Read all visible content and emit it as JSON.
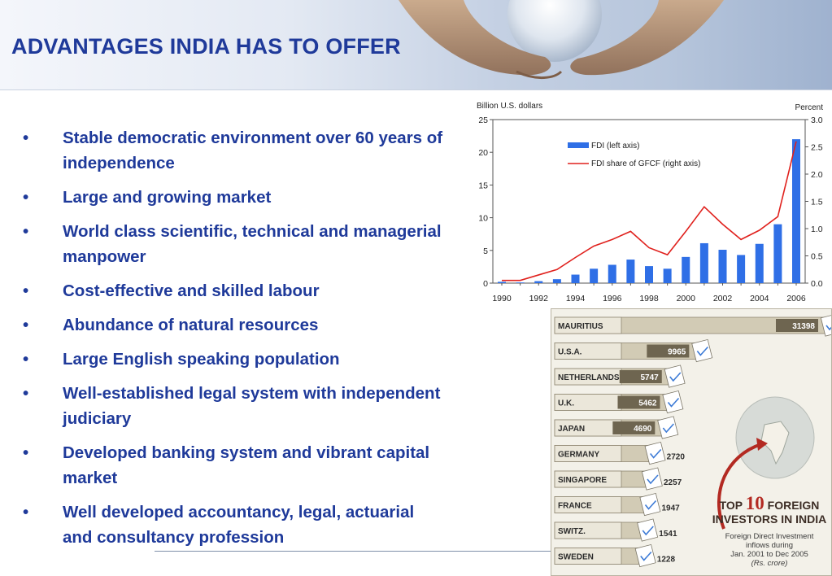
{
  "slide": {
    "title": "ADVANTAGES INDIA HAS TO OFFER",
    "bullet_marker": "•",
    "bullets": [
      "Stable democratic environment over 60 years of independence",
      "Large and growing market",
      "World class scientific, technical and managerial manpower",
      "Cost-effective and skilled labour",
      "Abundance of natural resources",
      "Large English speaking population",
      "Well-established legal system with independent judiciary",
      "Developed banking system and vibrant capital market",
      "Well developed accountancy, legal, actuarial and consultancy profession"
    ]
  },
  "chart_data": [
    {
      "type": "bar",
      "combo": "bar + line, dual axis",
      "left_axis_title": "Billion U.S. dollars",
      "right_axis_title": "Percent",
      "x": [
        1990,
        1991,
        1992,
        1993,
        1994,
        1995,
        1996,
        1997,
        1998,
        1999,
        2000,
        2001,
        2002,
        2003,
        2004,
        2005,
        2006
      ],
      "x_tick_labels": [
        "1990",
        "1992",
        "1994",
        "1996",
        "1998",
        "2000",
        "2002",
        "2004",
        "2006"
      ],
      "ylim_left": [
        0,
        25
      ],
      "y_ticks_left": [
        "0",
        "5",
        "10",
        "15",
        "20",
        "25"
      ],
      "ylim_right": [
        0,
        3.0
      ],
      "y_ticks_right": [
        "0.0",
        "0.5",
        "1.0",
        "1.5",
        "2.0",
        "2.5",
        "3.0"
      ],
      "series": [
        {
          "name": "FDI (left axis)",
          "kind": "bar",
          "axis": "left",
          "color": "#2f6fe6",
          "values": [
            0.2,
            0.1,
            0.3,
            0.6,
            1.3,
            2.2,
            2.8,
            3.6,
            2.6,
            2.2,
            4.0,
            6.1,
            5.1,
            4.3,
            6.0,
            9.0,
            22.0
          ]
        },
        {
          "name": "FDI share of GFCF (right axis)",
          "kind": "line",
          "axis": "right",
          "color": "#e0211d",
          "values": [
            0.05,
            0.05,
            0.15,
            0.25,
            0.47,
            0.68,
            0.8,
            0.95,
            0.65,
            0.52,
            0.95,
            1.4,
            1.08,
            0.8,
            0.97,
            1.22,
            2.6
          ]
        }
      ],
      "legend_position": "top-left inside plot",
      "grid": false
    },
    {
      "type": "bar",
      "orientation": "horizontal",
      "title": "TOP 10 FOREIGN INVESTORS IN INDIA",
      "title_parts": {
        "pre": "TOP",
        "num": "10",
        "post": "FOREIGN INVESTORS IN INDIA"
      },
      "subtitle_lines": [
        "Foreign Direct Investment",
        "inflows during",
        "Jan. 2001 to Dec 2005"
      ],
      "unit": "(Rs. crore)",
      "categories": [
        "MAURITIUS",
        "U.S.A.",
        "NETHERLANDS",
        "U.K.",
        "JAPAN",
        "GERMANY",
        "SINGAPORE",
        "FRANCE",
        "SWITZ.",
        "SWEDEN"
      ],
      "values": [
        31398,
        9965,
        5747,
        5462,
        4690,
        2720,
        2257,
        1947,
        1541,
        1228
      ],
      "value_labels": [
        "31398",
        "9965",
        "5747",
        "5462",
        "4690",
        "2720",
        "2257",
        "1947",
        "1541",
        "1228"
      ],
      "colors": {
        "bar": "#6e6550",
        "label_bg": "#ebe7da",
        "text": "#2b2b2b",
        "accent": "#b32a22"
      }
    }
  ]
}
